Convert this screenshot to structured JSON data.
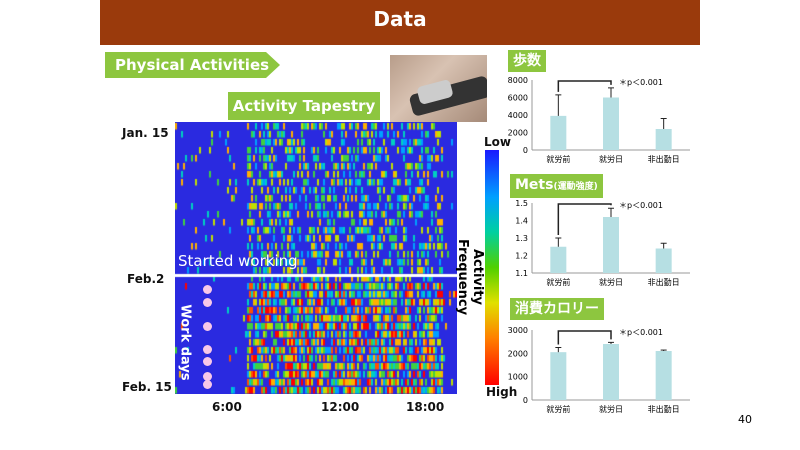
{
  "title": "Data",
  "physical_activities": "Physical Activities",
  "activity_tapestry": "Activity Tapestry",
  "heatmap": {
    "date_labels": [
      "Jan. 15",
      "Feb.2",
      "Feb. 15"
    ],
    "time_labels": [
      "6:00",
      "12:00",
      "18:00"
    ],
    "annotation": "Started working",
    "work_days": "Work days",
    "colorbar_low": "Low",
    "colorbar_high": "High",
    "colorbar_title": "Activity Frequency"
  },
  "page_number": "40",
  "chart_data": [
    {
      "type": "bar",
      "title": "歩数",
      "categories": [
        "就労前",
        "就労日",
        "非出勤日"
      ],
      "values": [
        3900,
        6000,
        2400
      ],
      "errors": [
        2400,
        1100,
        1200
      ],
      "ylim": [
        0,
        8000
      ],
      "yticks": [
        0,
        2000,
        4000,
        6000,
        8000
      ],
      "annotation": "＊p＜0.001",
      "bar_color": "#b6dfe3"
    },
    {
      "type": "bar",
      "title": "Mets",
      "title_sub": "(運動強度)",
      "categories": [
        "就労前",
        "就労日",
        "非出勤日"
      ],
      "values": [
        1.25,
        1.42,
        1.24
      ],
      "errors": [
        0.05,
        0.05,
        0.03
      ],
      "ylim": [
        1.1,
        1.5
      ],
      "yticks": [
        1.1,
        1.2,
        1.3,
        1.4,
        1.5
      ],
      "annotation": "＊p＜0.001",
      "bar_color": "#b6dfe3"
    },
    {
      "type": "bar",
      "title": "消費カロリー",
      "categories": [
        "就労前",
        "就労日",
        "非出勤日"
      ],
      "values": [
        2050,
        2400,
        2100
      ],
      "errors": [
        200,
        70,
        40
      ],
      "ylim": [
        0,
        3000
      ],
      "yticks": [
        0,
        1000,
        2000,
        3000
      ],
      "annotation": "＊p＜0.001",
      "bar_color": "#b6dfe3"
    }
  ]
}
